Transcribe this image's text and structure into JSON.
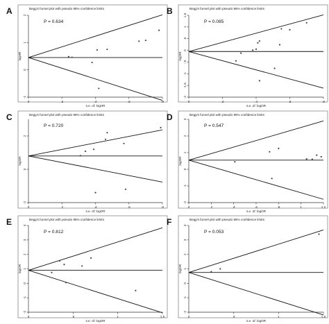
{
  "chart_data": [
    {
      "type": "scatter",
      "panel_letter": "A",
      "title": "Begg's funnel plot with pseudo 95% confidence limits",
      "annotation": "P = 0.634",
      "xlabel": "s.e. of: logHR",
      "ylabel": "logHR",
      "xlim": [
        0,
        0.8
      ],
      "ylim": [
        -1,
        2
      ],
      "xticks": [
        0,
        0.2,
        0.4,
        0.6,
        0.8
      ],
      "xtick_labels": [
        "0",
        ".2",
        ".4",
        ".6",
        ".8"
      ],
      "yticks": [
        -1,
        0,
        1,
        2
      ],
      "ytick_labels": [
        "-1",
        "0",
        "1",
        "2"
      ],
      "pooled": 0.45,
      "points": [
        [
          0.24,
          0.48
        ],
        [
          0.26,
          0.46
        ],
        [
          0.38,
          0.27
        ],
        [
          0.41,
          0.73
        ],
        [
          0.47,
          0.75
        ],
        [
          0.42,
          -0.68
        ],
        [
          0.66,
          1.05
        ],
        [
          0.7,
          1.08
        ],
        [
          0.78,
          1.45
        ]
      ]
    },
    {
      "type": "scatter",
      "panel_letter": "B",
      "title": "Begg's funnel plot with pseudo 95% confidence limits",
      "annotation": "P = 0.085",
      "xlabel": "s.e. of: logOR",
      "ylabel": "logOR",
      "xlim": [
        0,
        0.8
      ],
      "ylim": [
        -2,
        1.5
      ],
      "xticks": [
        0,
        0.2,
        0.4,
        0.6,
        0.8
      ],
      "xtick_labels": [
        "0",
        ".2",
        ".4",
        ".6",
        ".8"
      ],
      "yticks": [
        -2,
        -1.5,
        -1,
        -0.5,
        0,
        0.5,
        1,
        1.5
      ],
      "ytick_labels": [
        "-2",
        "-1.5",
        "-1",
        "-.5",
        "0",
        ".5",
        "1",
        "1.5"
      ],
      "pooled": -0.05,
      "points": [
        [
          0.28,
          -0.45
        ],
        [
          0.31,
          -0.12
        ],
        [
          0.38,
          0.01
        ],
        [
          0.4,
          0.05
        ],
        [
          0.41,
          0.32
        ],
        [
          0.42,
          0.4
        ],
        [
          0.42,
          -1.3
        ],
        [
          0.51,
          -0.77
        ],
        [
          0.54,
          0.24
        ],
        [
          0.55,
          0.92
        ],
        [
          0.6,
          0.88
        ],
        [
          0.7,
          1.18
        ]
      ]
    },
    {
      "type": "scatter",
      "panel_letter": "C",
      "title": "Begg's funnel plot with pseudo 95% confidence limits",
      "annotation": "P = 0.720",
      "xlabel": "s.e. of: logOR",
      "ylabel": "logOR",
      "xlim": [
        0,
        0.8
      ],
      "ylim": [
        -2,
        3
      ],
      "xticks": [
        0,
        0.2,
        0.4,
        0.6,
        0.8
      ],
      "xtick_labels": [
        "0",
        ".2",
        ".4",
        ".6",
        ".8"
      ],
      "yticks": [
        -2,
        0,
        2
      ],
      "ytick_labels": [
        "-2",
        "0",
        "2"
      ],
      "pooled": 0.8,
      "points": [
        [
          0.31,
          0.82
        ],
        [
          0.34,
          1.08
        ],
        [
          0.39,
          1.2
        ],
        [
          0.4,
          -1.4
        ],
        [
          0.46,
          1.8
        ],
        [
          0.47,
          2.2
        ],
        [
          0.57,
          1.55
        ],
        [
          0.58,
          -1.2
        ],
        [
          0.79,
          2.5
        ]
      ]
    },
    {
      "type": "scatter",
      "panel_letter": "D",
      "title": "Begg's funnel plot with pseudo 95% confidence limits",
      "annotation": "P = 0.547",
      "xlabel": "s.e. of: logOR",
      "ylabel": "logOR",
      "xlim": [
        0,
        1.2
      ],
      "ylim": [
        -2,
        3
      ],
      "xticks": [
        0,
        0.2,
        0.4,
        0.6,
        0.8,
        1,
        1.2
      ],
      "xtick_labels": [
        "0",
        ".2",
        ".4",
        ".6",
        ".8",
        "1",
        "1.2"
      ],
      "yticks": [
        -2,
        -1,
        0,
        1,
        2,
        3
      ],
      "ytick_labels": [
        "-2",
        "-1",
        "0",
        "1",
        "2",
        "3"
      ],
      "pooled": 0.55,
      "points": [
        [
          0.41,
          0.45
        ],
        [
          0.72,
          1.05
        ],
        [
          0.74,
          -0.55
        ],
        [
          0.8,
          1.25
        ],
        [
          1.05,
          0.62
        ],
        [
          1.1,
          0.6
        ],
        [
          1.14,
          0.85
        ],
        [
          1.18,
          0.75
        ]
      ]
    },
    {
      "type": "scatter",
      "panel_letter": "E",
      "title": "Begg's funnel plot with pseudo 95% confidence limits",
      "annotation": "P = 0.812",
      "xlabel": "s.e. of: logOR",
      "ylabel": "logOR",
      "xlim": [
        0,
        1.5
      ],
      "ylim": [
        -2,
        4
      ],
      "xticks": [
        0,
        0.5,
        1,
        1.5
      ],
      "xtick_labels": [
        "0",
        ".5",
        "1",
        "1.5"
      ],
      "yticks": [
        -2,
        -1,
        0,
        1,
        2,
        3,
        4
      ],
      "ytick_labels": [
        "-2",
        "-1",
        "0",
        "1",
        "2",
        "3",
        "4"
      ],
      "pooled": 0.9,
      "points": [
        [
          0.26,
          0.75
        ],
        [
          0.35,
          1.55
        ],
        [
          0.4,
          1.3
        ],
        [
          0.42,
          0.05
        ],
        [
          0.6,
          1.2
        ],
        [
          0.7,
          1.75
        ],
        [
          1.2,
          -0.5
        ]
      ]
    },
    {
      "type": "scatter",
      "panel_letter": "F",
      "title": "Begg's funnel plot with pseudo 95% confidence limits",
      "annotation": "P = 0.053",
      "xlabel": "s.e. of: logOR",
      "ylabel": "logOR",
      "xlim": [
        0,
        1.5
      ],
      "ylim": [
        -2,
        4
      ],
      "xticks": [
        0,
        0.5,
        1,
        1.5
      ],
      "xtick_labels": [
        "0",
        ".5",
        "1",
        "1.5"
      ],
      "yticks": [
        -2,
        -1,
        0,
        1,
        2,
        3,
        4
      ],
      "ytick_labels": [
        "-2",
        "-1",
        "0",
        "1",
        "2",
        "3",
        "4"
      ],
      "pooled": 0.75,
      "points": [
        [
          0.25,
          0.8
        ],
        [
          0.35,
          1.0
        ],
        [
          1.45,
          3.4
        ]
      ]
    }
  ]
}
